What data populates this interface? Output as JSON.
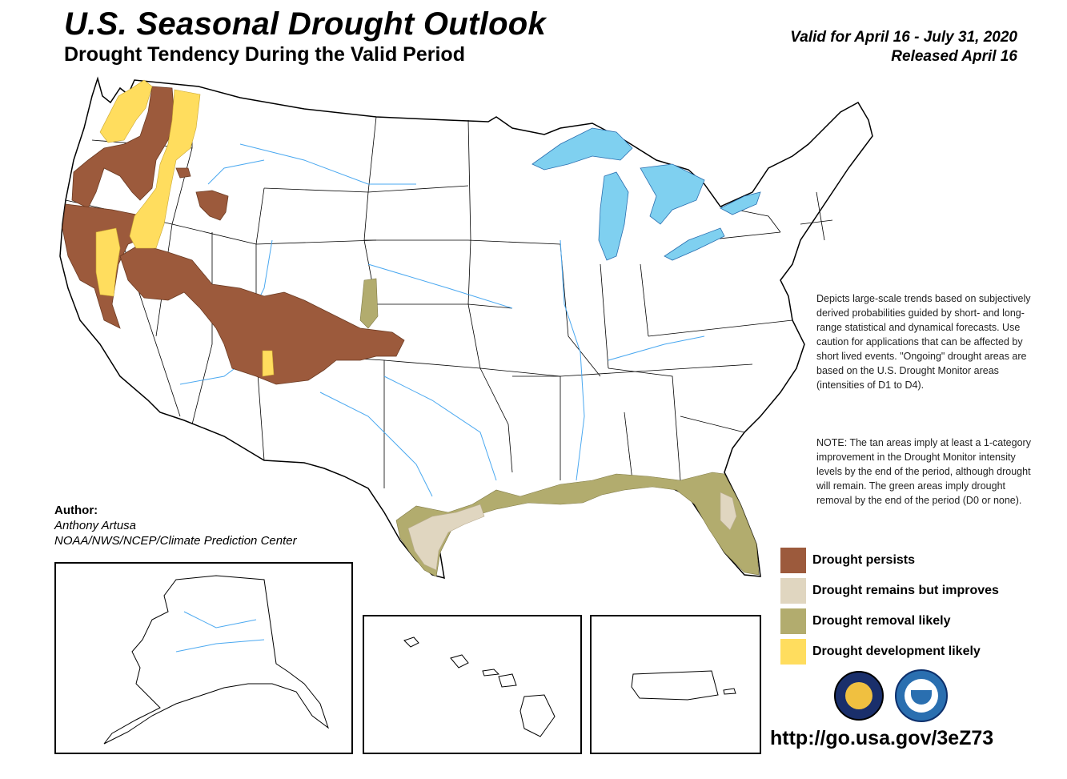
{
  "header": {
    "title": "U.S. Seasonal Drought Outlook",
    "subtitle": "Drought Tendency During the Valid Period",
    "valid": "Valid for April 16 - July 31, 2020",
    "released": "Released April 16"
  },
  "description": "Depicts large-scale trends based on subjectively derived probabilities guided by short- and long-range statistical and dynamical forecasts. Use caution for applications that can be affected by short lived events. \"Ongoing\" drought areas are based on the U.S. Drought Monitor areas (intensities of D1 to D4).",
  "note": "NOTE: The tan areas imply at least a 1-category improvement in the Drought Monitor intensity levels by the end of the period, although drought will remain. The green areas imply drought removal by the end of the period (D0 or none).",
  "author": {
    "label": "Author:",
    "name": "Anthony Artusa",
    "org": "NOAA/NWS/NCEP/Climate Prediction Center"
  },
  "legend": [
    {
      "label": "Drought persists",
      "color": "#9c5a3c"
    },
    {
      "label": "Drought remains but improves",
      "color": "#e0d6c0"
    },
    {
      "label": "Drought removal likely",
      "color": "#b2ac6e"
    },
    {
      "label": "Drought development likely",
      "color": "#ffdd5e"
    }
  ],
  "url": "http://go.usa.gov/3eZ73",
  "colors": {
    "water": "#7fd0f0",
    "river": "#4aa8f0",
    "border": "#000000"
  }
}
